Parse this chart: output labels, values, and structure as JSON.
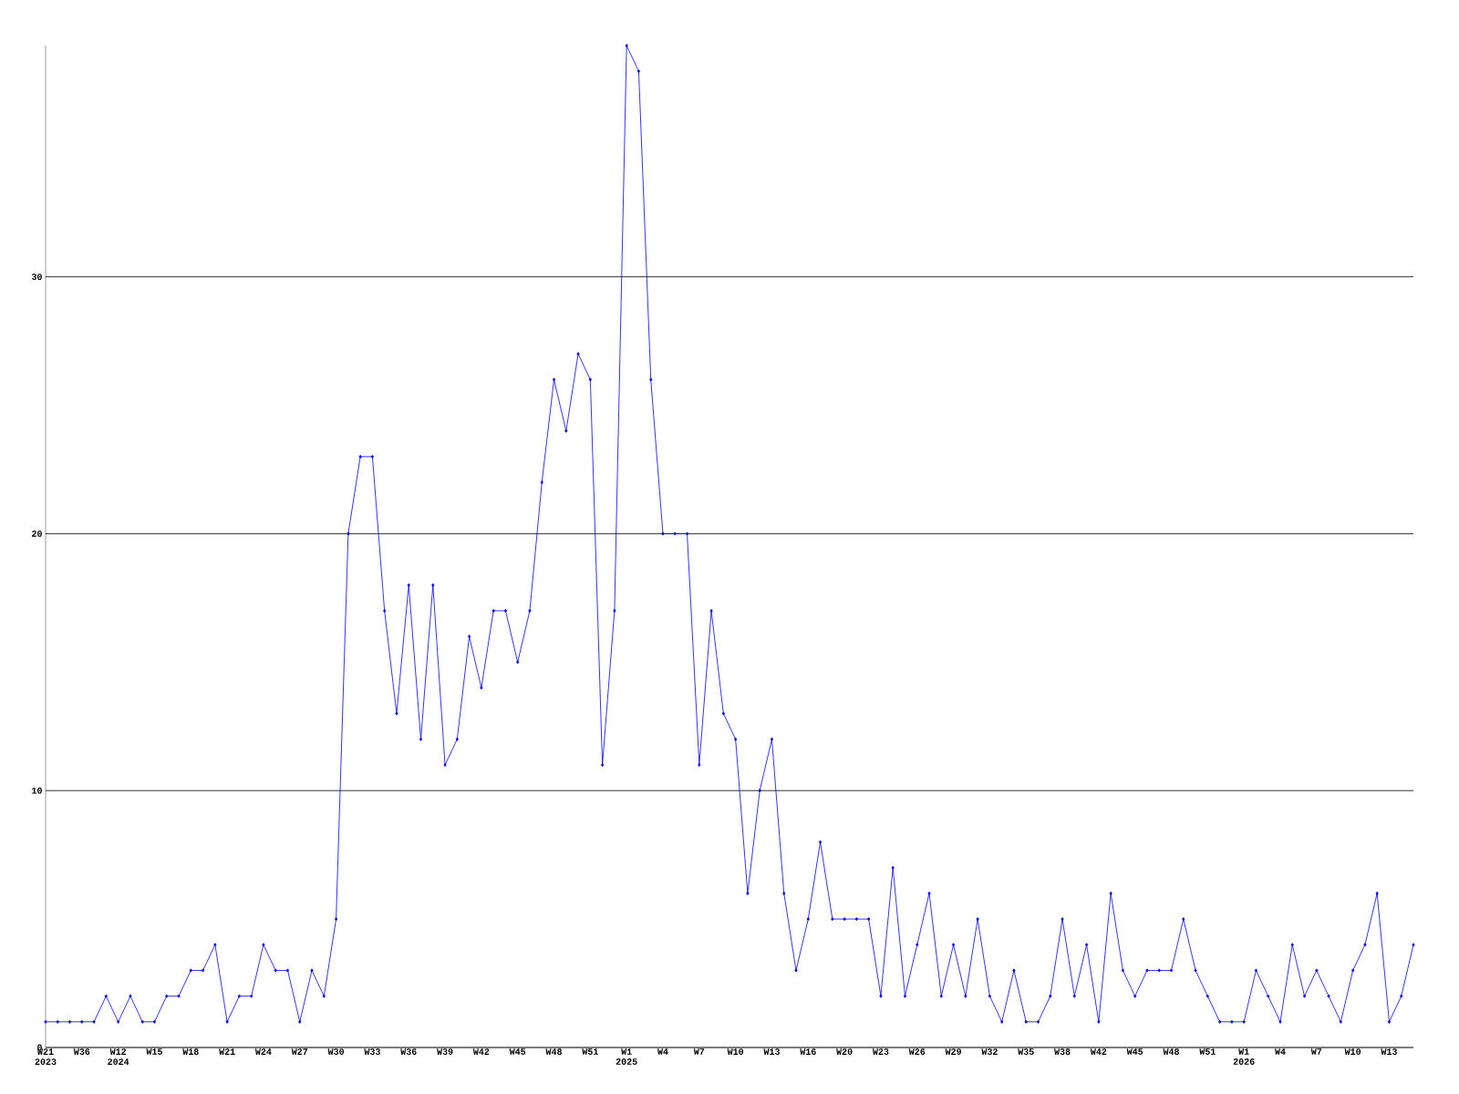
{
  "chart_data": {
    "type": "line",
    "color": "#0000ff",
    "marker": "diamond",
    "line_style": "solid",
    "grid": "y",
    "categories": [
      "W21 2023",
      null,
      null,
      "W36",
      null,
      null,
      "W12 2024",
      null,
      null,
      "W15",
      null,
      null,
      "W18",
      null,
      null,
      "W21",
      null,
      null,
      "W24",
      null,
      null,
      "W27",
      null,
      null,
      "W30",
      null,
      null,
      "W33",
      null,
      null,
      "W36",
      null,
      null,
      "W39",
      null,
      null,
      "W42",
      null,
      null,
      "W45",
      null,
      null,
      "W48",
      null,
      null,
      "W51",
      null,
      null,
      "W1 2025",
      null,
      null,
      "W4",
      null,
      null,
      "W7",
      null,
      null,
      "W10",
      null,
      null,
      "W13",
      null,
      null,
      "W16",
      null,
      null,
      "W20",
      null,
      null,
      "W23",
      null,
      null,
      "W26",
      null,
      null,
      "W29",
      null,
      null,
      "W32",
      null,
      null,
      "W35",
      null,
      null,
      "W38",
      null,
      null,
      "W42",
      null,
      null,
      "W45",
      null,
      null,
      "W48",
      null,
      null,
      "W51",
      null,
      null,
      "W1 2026",
      null,
      null,
      "W4",
      null,
      null,
      "W7",
      null,
      null,
      "W10",
      null,
      null,
      "W13",
      null,
      null
    ],
    "values": [
      1,
      1,
      1,
      1,
      1,
      2,
      1,
      2,
      1,
      1,
      2,
      2,
      3,
      3,
      4,
      1,
      2,
      2,
      4,
      3,
      3,
      1,
      3,
      2,
      5,
      20,
      23,
      23,
      17,
      13,
      18,
      12,
      18,
      11,
      12,
      16,
      14,
      17,
      17,
      15,
      17,
      22,
      26,
      24,
      27,
      26,
      11,
      17,
      39,
      38,
      26,
      20,
      20,
      20,
      11,
      17,
      13,
      12,
      6,
      10,
      12,
      6,
      3,
      5,
      8,
      5,
      5,
      5,
      5,
      2,
      7,
      2,
      4,
      6,
      2,
      4,
      2,
      5,
      2,
      1,
      3,
      1,
      1,
      2,
      5,
      2,
      4,
      1,
      6,
      3,
      2,
      3,
      3,
      3,
      5,
      3,
      2,
      1,
      1,
      1,
      3,
      2,
      1,
      4,
      2,
      3,
      2,
      1,
      3,
      4,
      6,
      1,
      2,
      4
    ],
    "ylim": [
      0,
      39
    ],
    "yticks": [
      0,
      10,
      20,
      30
    ]
  }
}
